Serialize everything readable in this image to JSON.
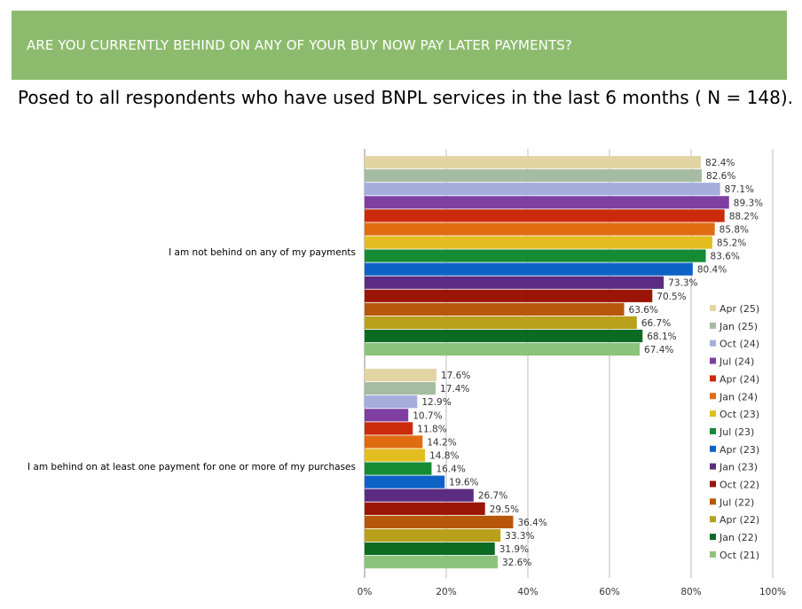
{
  "header": {
    "title": "ARE YOU CURRENTLY BEHIND ON ANY OF YOUR BUY NOW PAY LATER PAYMENTS?",
    "subtitle": "Posed to all respondents who have used BNPL services in the last 6 months ( N = 148)."
  },
  "chart_data": {
    "type": "bar",
    "orientation": "horizontal",
    "categories": [
      "I am not behind on any of my payments",
      "I am behind on at least one payment for one or more of my purchases"
    ],
    "series": [
      {
        "name": "Apr (25)",
        "color": "#e3d5a3",
        "values": [
          82.4,
          17.6
        ]
      },
      {
        "name": "Jan (25)",
        "color": "#a5bca2",
        "values": [
          82.6,
          17.4
        ]
      },
      {
        "name": "Oct (24)",
        "color": "#a4addc",
        "values": [
          87.1,
          12.9
        ]
      },
      {
        "name": "Jul (24)",
        "color": "#7e3fa1",
        "values": [
          89.3,
          10.7
        ]
      },
      {
        "name": "Apr (24)",
        "color": "#cc2b0b",
        "values": [
          88.2,
          11.8
        ]
      },
      {
        "name": "Jan (24)",
        "color": "#e06c12",
        "values": [
          85.8,
          14.2
        ]
      },
      {
        "name": "Oct (23)",
        "color": "#e2be21",
        "values": [
          85.2,
          14.8
        ]
      },
      {
        "name": "Jul (23)",
        "color": "#138c34",
        "values": [
          83.6,
          16.4
        ]
      },
      {
        "name": "Apr (23)",
        "color": "#0e62c6",
        "values": [
          80.4,
          19.6
        ]
      },
      {
        "name": "Jan (23)",
        "color": "#5b2d82",
        "values": [
          73.3,
          26.7
        ]
      },
      {
        "name": "Oct (22)",
        "color": "#9b1506",
        "values": [
          70.5,
          29.5
        ]
      },
      {
        "name": "Jul (22)",
        "color": "#b8560a",
        "values": [
          63.6,
          36.4
        ]
      },
      {
        "name": "Apr (22)",
        "color": "#b9a01b",
        "values": [
          66.7,
          33.3
        ]
      },
      {
        "name": "Jan (22)",
        "color": "#0b6b22",
        "values": [
          68.1,
          31.9
        ]
      },
      {
        "name": "Oct (21)",
        "color": "#8cc37a",
        "values": [
          67.4,
          32.6
        ]
      }
    ],
    "value_suffix": "%",
    "xlim": [
      0,
      100
    ],
    "xticks": [
      "0%",
      "20%",
      "40%",
      "60%",
      "80%",
      "100%"
    ],
    "grid": true,
    "legend": "right"
  }
}
